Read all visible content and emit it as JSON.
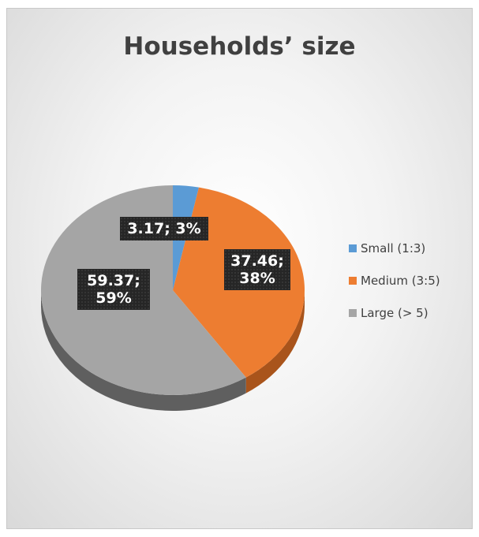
{
  "chart_data": {
    "type": "pie",
    "title": "Households’ size",
    "categories": [
      "Small (1:3)",
      "Medium (3:5)",
      "Large (> 5)"
    ],
    "values": [
      3.17,
      37.46,
      59.37
    ],
    "percent_labels": [
      "3%",
      "38%",
      "59%"
    ],
    "data_labels": [
      [
        "3.17; 3%"
      ],
      [
        "37.46;",
        "38%"
      ],
      [
        "59.37;",
        "59%"
      ]
    ],
    "colors": [
      "#5b9bd5",
      "#ed7d31",
      "#a5a5a5"
    ],
    "side_colors": [
      "#3b6e9c",
      "#a9541b",
      "#5f5f5f"
    ],
    "legend_position": "right",
    "style": "3d"
  }
}
